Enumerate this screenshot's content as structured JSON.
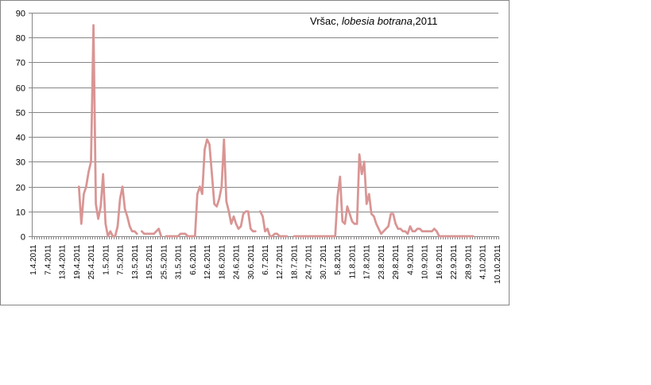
{
  "chart_data": {
    "type": "line",
    "title": {
      "location": "Vršac, ",
      "species": "lobesia botrana",
      "year": ",2011"
    },
    "ylim": [
      0,
      90
    ],
    "yticks": [
      0,
      10,
      20,
      30,
      40,
      50,
      60,
      70,
      80,
      90
    ],
    "grid": "horizontal",
    "x_start": "1.4.2011",
    "x_end": "10.10.2011",
    "xtick_labels": [
      "1.4.2011",
      "7.4.2011",
      "13.4.2011",
      "19.4.2011",
      "25.4.2011",
      "1.5.2011",
      "7.5.2011",
      "13.5.2011",
      "19.5.2011",
      "25.5.2011",
      "31.5.2011",
      "6.6.2011",
      "12.6.2011",
      "18.6.2011",
      "24.6.2011",
      "30.6.2011",
      "6.7.2011",
      "12.7.2011",
      "18.7.2011",
      "24.7.2011",
      "30.7.2011",
      "5.8.2011",
      "11.8.2011",
      "17.8.2011",
      "23.8.2011",
      "29.8.2011",
      "4.9.2011",
      "10.9.2011",
      "16.9.2011",
      "22.9.2011",
      "28.9.2011",
      "4.10.2011",
      "10.10.2011"
    ],
    "line_color": "#D99594",
    "series": [
      {
        "segments": [
          [
            [
              "20.4.2011",
              20
            ],
            [
              "21.4.2011",
              5
            ],
            [
              "22.4.2011",
              17
            ],
            [
              "23.4.2011",
              20
            ],
            [
              "24.4.2011",
              26
            ],
            [
              "25.4.2011",
              30
            ],
            [
              "26.4.2011",
              85
            ],
            [
              "27.4.2011",
              13
            ],
            [
              "28.4.2011",
              7
            ],
            [
              "29.4.2011",
              12
            ],
            [
              "30.4.2011",
              25
            ],
            [
              "1.5.2011",
              5
            ],
            [
              "2.5.2011",
              0
            ],
            [
              "3.5.2011",
              2
            ],
            [
              "4.5.2011",
              0
            ],
            [
              "5.5.2011",
              0
            ],
            [
              "6.5.2011",
              4
            ],
            [
              "7.5.2011",
              15
            ],
            [
              "8.5.2011",
              20
            ],
            [
              "9.5.2011",
              11
            ],
            [
              "10.5.2011",
              8
            ],
            [
              "11.5.2011",
              4
            ],
            [
              "12.5.2011",
              2
            ],
            [
              "13.5.2011",
              2
            ],
            [
              "14.5.2011",
              1
            ]
          ],
          [
            [
              "16.5.2011",
              2
            ],
            [
              "17.5.2011",
              1
            ],
            [
              "18.5.2011",
              1
            ],
            [
              "19.5.2011",
              1
            ],
            [
              "20.5.2011",
              1
            ],
            [
              "21.5.2011",
              1
            ],
            [
              "22.5.2011",
              2
            ],
            [
              "23.5.2011",
              3
            ],
            [
              "24.5.2011",
              0
            ]
          ],
          [
            [
              "26.5.2011",
              0
            ],
            [
              "27.5.2011",
              0
            ],
            [
              "28.5.2011",
              0
            ],
            [
              "29.5.2011",
              0
            ],
            [
              "30.5.2011",
              0
            ],
            [
              "31.5.2011",
              0
            ],
            [
              "1.6.2011",
              1
            ],
            [
              "2.6.2011",
              1
            ],
            [
              "3.6.2011",
              1
            ],
            [
              "4.6.2011",
              0
            ],
            [
              "5.6.2011",
              0
            ],
            [
              "6.6.2011",
              0
            ],
            [
              "7.6.2011",
              0
            ],
            [
              "8.6.2011",
              17
            ],
            [
              "9.6.2011",
              20
            ],
            [
              "10.6.2011",
              17
            ],
            [
              "11.6.2011",
              35
            ],
            [
              "12.6.2011",
              39
            ],
            [
              "13.6.2011",
              37
            ],
            [
              "14.6.2011",
              25
            ],
            [
              "15.6.2011",
              13
            ],
            [
              "16.6.2011",
              12
            ],
            [
              "17.6.2011",
              15
            ],
            [
              "18.6.2011",
              20
            ],
            [
              "19.6.2011",
              39
            ],
            [
              "20.6.2011",
              14
            ],
            [
              "21.6.2011",
              10
            ],
            [
              "22.6.2011",
              5
            ],
            [
              "23.6.2011",
              8
            ],
            [
              "24.6.2011",
              5
            ],
            [
              "25.6.2011",
              3
            ],
            [
              "26.6.2011",
              4
            ],
            [
              "27.6.2011",
              9
            ],
            [
              "28.6.2011",
              10
            ],
            [
              "29.6.2011",
              10
            ],
            [
              "30.6.2011",
              3
            ],
            [
              "1.7.2011",
              2
            ],
            [
              "2.7.2011",
              2
            ]
          ],
          [
            [
              "4.7.2011",
              10
            ],
            [
              "5.7.2011",
              8
            ],
            [
              "6.7.2011",
              2
            ],
            [
              "7.7.2011",
              3
            ],
            [
              "8.7.2011",
              0
            ],
            [
              "9.7.2011",
              0
            ],
            [
              "10.7.2011",
              1
            ],
            [
              "11.7.2011",
              1
            ],
            [
              "12.7.2011",
              0
            ],
            [
              "13.7.2011",
              0
            ],
            [
              "14.7.2011",
              0
            ],
            [
              "15.7.2011",
              0
            ]
          ],
          [
            [
              "18.7.2011",
              0
            ],
            [
              "19.7.2011",
              0
            ],
            [
              "20.7.2011",
              0
            ],
            [
              "21.7.2011",
              0
            ],
            [
              "22.7.2011",
              0
            ],
            [
              "23.7.2011",
              0
            ],
            [
              "24.7.2011",
              0
            ],
            [
              "25.7.2011",
              0
            ],
            [
              "26.7.2011",
              0
            ],
            [
              "27.7.2011",
              0
            ],
            [
              "28.7.2011",
              0
            ],
            [
              "29.7.2011",
              0
            ],
            [
              "30.7.2011",
              0
            ],
            [
              "31.7.2011",
              0
            ],
            [
              "1.8.2011",
              0
            ],
            [
              "2.8.2011",
              0
            ],
            [
              "3.8.2011",
              0
            ],
            [
              "4.8.2011",
              0
            ],
            [
              "5.8.2011",
              16
            ],
            [
              "6.8.2011",
              24
            ],
            [
              "7.8.2011",
              6
            ],
            [
              "8.8.2011",
              5
            ],
            [
              "9.8.2011",
              12
            ],
            [
              "10.8.2011",
              9
            ],
            [
              "11.8.2011",
              6
            ],
            [
              "12.8.2011",
              5
            ],
            [
              "13.8.2011",
              5
            ],
            [
              "14.8.2011",
              33
            ],
            [
              "15.8.2011",
              25
            ],
            [
              "16.8.2011",
              30
            ],
            [
              "17.8.2011",
              13
            ],
            [
              "18.8.2011",
              17
            ],
            [
              "19.8.2011",
              9
            ],
            [
              "20.8.2011",
              8
            ],
            [
              "21.8.2011",
              5
            ],
            [
              "22.8.2011",
              3
            ],
            [
              "23.8.2011",
              1
            ],
            [
              "24.8.2011",
              2
            ],
            [
              "25.8.2011",
              3
            ],
            [
              "26.8.2011",
              4
            ],
            [
              "27.8.2011",
              9
            ],
            [
              "28.8.2011",
              9
            ],
            [
              "29.8.2011",
              5
            ],
            [
              "30.8.2011",
              3
            ],
            [
              "31.8.2011",
              3
            ],
            [
              "1.9.2011",
              2
            ],
            [
              "2.9.2011",
              2
            ],
            [
              "3.9.2011",
              1
            ],
            [
              "4.9.2011",
              4
            ],
            [
              "5.9.2011",
              2
            ],
            [
              "6.9.2011",
              2
            ],
            [
              "7.9.2011",
              3
            ],
            [
              "8.9.2011",
              3
            ],
            [
              "9.9.2011",
              2
            ],
            [
              "10.9.2011",
              2
            ],
            [
              "11.9.2011",
              2
            ],
            [
              "12.9.2011",
              2
            ],
            [
              "13.9.2011",
              2
            ],
            [
              "14.9.2011",
              3
            ],
            [
              "15.9.2011",
              2
            ],
            [
              "16.9.2011",
              0
            ],
            [
              "17.9.2011",
              0
            ],
            [
              "18.9.2011",
              0
            ],
            [
              "19.9.2011",
              0
            ],
            [
              "20.9.2011",
              0
            ],
            [
              "21.9.2011",
              0
            ],
            [
              "22.9.2011",
              0
            ],
            [
              "23.9.2011",
              0
            ],
            [
              "24.9.2011",
              0
            ],
            [
              "25.9.2011",
              0
            ],
            [
              "26.9.2011",
              0
            ],
            [
              "27.9.2011",
              0
            ],
            [
              "28.9.2011",
              0
            ],
            [
              "29.9.2011",
              0
            ],
            [
              "30.9.2011",
              0
            ]
          ]
        ]
      }
    ]
  }
}
